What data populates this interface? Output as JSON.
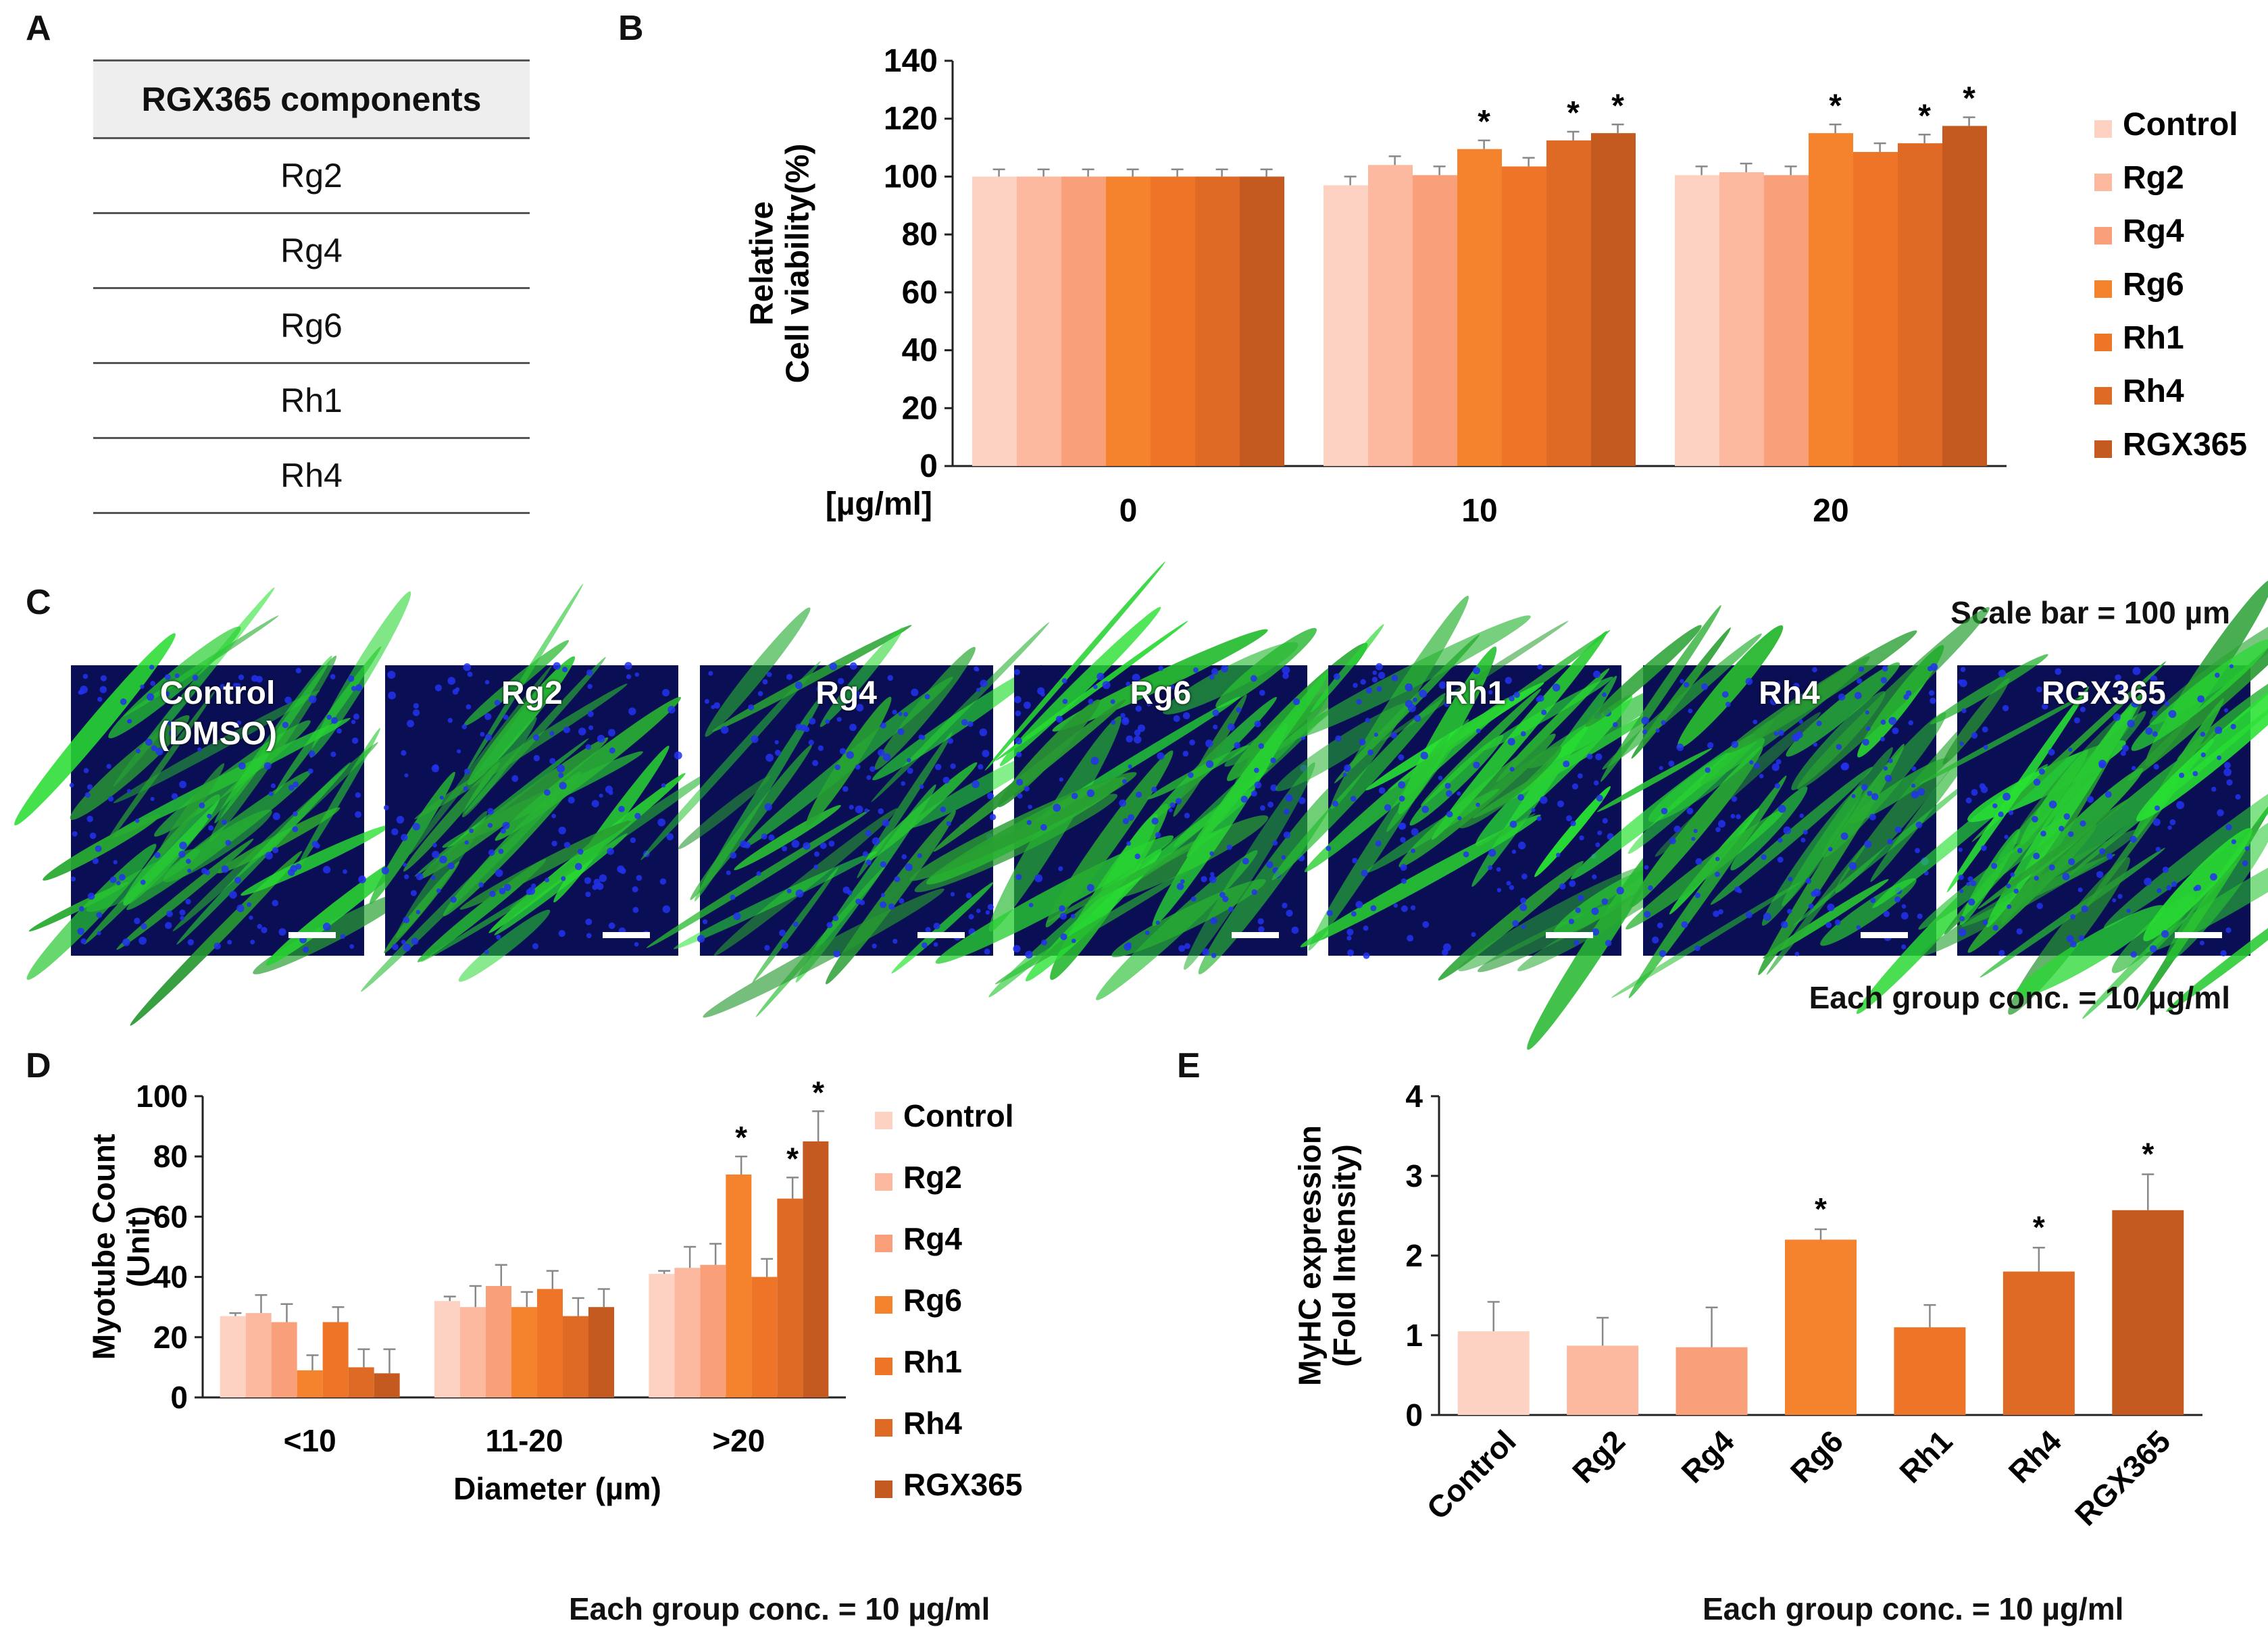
{
  "panels": {
    "a": {
      "letter": "A"
    },
    "b": {
      "letter": "B"
    },
    "c": {
      "letter": "C"
    },
    "d": {
      "letter": "D"
    },
    "e": {
      "letter": "E"
    }
  },
  "table_a": {
    "header": "RGX365 components",
    "rows": [
      "Rg2",
      "Rg4",
      "Rg6",
      "Rh1",
      "Rh4"
    ]
  },
  "colors": {
    "Control": "#fdd2c3",
    "Rg2": "#fcb9a0",
    "Rg4": "#f9a07a",
    "Rg6": "#f5822c",
    "Rh1": "#ee7428",
    "Rh4": "#df6a25",
    "RGX365": "#c45a20"
  },
  "panel_c": {
    "scale_note": "Scale bar = 100 µm",
    "conc_note": "Each group conc. = 10 µg/ml",
    "images": [
      {
        "label": "Control\n(DMSO)",
        "density": 0.55
      },
      {
        "label": "Rg2",
        "density": 0.35
      },
      {
        "label": "Rg4",
        "density": 0.35
      },
      {
        "label": "Rg6",
        "density": 0.8
      },
      {
        "label": "Rh1",
        "density": 0.65
      },
      {
        "label": "Rh4",
        "density": 0.7
      },
      {
        "label": "RGX365",
        "density": 0.9
      }
    ]
  },
  "panel_d_note": "Each group conc. = 10 µg/ml",
  "panel_e_note": "Each group conc. = 10 µg/ml",
  "chart_data": [
    {
      "id": "B",
      "type": "bar",
      "ylabel": "Relative\nCell viability(%)",
      "xlabel": "[µg/ml]",
      "categories": [
        "0",
        "10",
        "20"
      ],
      "ylim": [
        0,
        140
      ],
      "yticks": [
        0,
        20,
        40,
        60,
        80,
        100,
        120,
        140
      ],
      "series": [
        {
          "name": "Control",
          "values": [
            100,
            97,
            100.5
          ],
          "errors": [
            2.5,
            3,
            3
          ]
        },
        {
          "name": "Rg2",
          "values": [
            100,
            104,
            101.5
          ],
          "errors": [
            2.5,
            3,
            3
          ]
        },
        {
          "name": "Rg4",
          "values": [
            100,
            100.5,
            100.5
          ],
          "errors": [
            2.5,
            3,
            3
          ]
        },
        {
          "name": "Rg6",
          "values": [
            100,
            109.5,
            115
          ],
          "errors": [
            2.5,
            3,
            3
          ]
        },
        {
          "name": "Rh1",
          "values": [
            100,
            103.5,
            108.5
          ],
          "errors": [
            2.5,
            3,
            3
          ]
        },
        {
          "name": "Rh4",
          "values": [
            100,
            112.5,
            111.5
          ],
          "errors": [
            2.5,
            3,
            3
          ]
        },
        {
          "name": "RGX365",
          "values": [
            100,
            115,
            117.5
          ],
          "errors": [
            2.5,
            3,
            3
          ]
        }
      ],
      "significant": [
        [
          1,
          3
        ],
        [
          1,
          5
        ],
        [
          1,
          6
        ],
        [
          2,
          3
        ],
        [
          2,
          5
        ],
        [
          2,
          6
        ]
      ],
      "sig_marker": "*",
      "legend": "right"
    },
    {
      "id": "D",
      "type": "bar",
      "ylabel": "Myotube Count\n(Unit)",
      "xlabel": "Diameter (µm)",
      "categories": [
        "<10",
        "11-20",
        ">20"
      ],
      "ylim": [
        0,
        100
      ],
      "yticks": [
        0,
        20,
        40,
        60,
        80,
        100
      ],
      "series": [
        {
          "name": "Control",
          "values": [
            27,
            32,
            41
          ],
          "errors": [
            1,
            1.5,
            1
          ]
        },
        {
          "name": "Rg2",
          "values": [
            28,
            30,
            43
          ],
          "errors": [
            6,
            7,
            7
          ]
        },
        {
          "name": "Rg4",
          "values": [
            25,
            37,
            44
          ],
          "errors": [
            6,
            7,
            7
          ]
        },
        {
          "name": "Rg6",
          "values": [
            9,
            30,
            74
          ],
          "errors": [
            5,
            5,
            6
          ]
        },
        {
          "name": "Rh1",
          "values": [
            25,
            36,
            40
          ],
          "errors": [
            5,
            6,
            6
          ]
        },
        {
          "name": "Rh4",
          "values": [
            10,
            27,
            66
          ],
          "errors": [
            6,
            6,
            7
          ]
        },
        {
          "name": "RGX365",
          "values": [
            8,
            30,
            85
          ],
          "errors": [
            8,
            6,
            10
          ]
        }
      ],
      "significant": [
        [
          2,
          3
        ],
        [
          2,
          5
        ],
        [
          2,
          6
        ]
      ],
      "sig_marker": "*",
      "legend": "right"
    },
    {
      "id": "E",
      "type": "bar",
      "ylabel": "MyHC expression\n(Fold Intensity)",
      "categories": [
        "Control",
        "Rg2",
        "Rg4",
        "Rg6",
        "Rh1",
        "Rh4",
        "RGX365"
      ],
      "values": [
        1.05,
        0.87,
        0.85,
        2.2,
        1.1,
        1.8,
        2.57
      ],
      "errors": [
        0.37,
        0.35,
        0.5,
        0.13,
        0.28,
        0.3,
        0.45
      ],
      "ylim": [
        0,
        4
      ],
      "yticks": [
        0,
        1,
        2,
        3,
        4
      ],
      "significant": [
        3,
        5,
        6
      ],
      "sig_marker": "*"
    }
  ]
}
